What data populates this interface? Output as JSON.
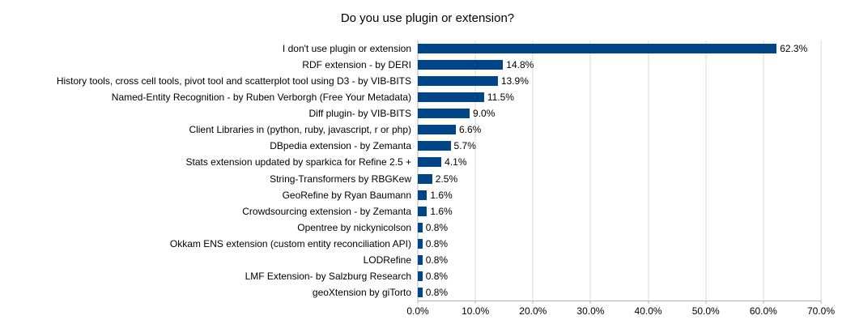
{
  "title": "Do you use plugin or extension?",
  "chart_data": {
    "type": "bar",
    "orientation": "horizontal",
    "title": "Do you use plugin or extension?",
    "xlabel": "",
    "ylabel": "",
    "xlim": [
      0,
      70
    ],
    "grid": true,
    "legend": "none",
    "bar_color": "#004586",
    "categories": [
      "I don't use plugin or extension",
      "RDF extension - by DERI",
      "History tools, cross cell tools, pivot tool and scatterplot tool using D3 - by VIB-BITS",
      "Named-Entity Recognition - by Ruben Verborgh (Free Your Metadata)",
      "Diff plugin- by VIB-BITS",
      "Client Libraries in (python, ruby, javascript, r or php)",
      "DBpedia extension - by Zemanta",
      "Stats extension updated by sparkica for Refine 2.5 +",
      "String-Transformers by RBGKew",
      "GeoRefine by Ryan Baumann",
      "Crowdsourcing extension - by Zemanta",
      "Opentree by nickynicolson",
      "Okkam ENS extension (custom entity reconciliation API)",
      "LODRefine",
      "LMF Extension- by Salzburg Research",
      "geoXtension by giTorto"
    ],
    "values": [
      62.3,
      14.8,
      13.9,
      11.5,
      9.0,
      6.6,
      5.7,
      4.1,
      2.5,
      1.6,
      1.6,
      0.8,
      0.8,
      0.8,
      0.8,
      0.8
    ],
    "value_labels": [
      "62.3%",
      "14.8%",
      "13.9%",
      "11.5%",
      "9.0%",
      "6.6%",
      "5.7%",
      "4.1%",
      "2.5%",
      "1.6%",
      "1.6%",
      "0.8%",
      "0.8%",
      "0.8%",
      "0.8%",
      "0.8%"
    ],
    "x_ticks": [
      "0.0%",
      "10.0%",
      "20.0%",
      "30.0%",
      "40.0%",
      "50.0%",
      "60.0%",
      "70.0%"
    ]
  }
}
